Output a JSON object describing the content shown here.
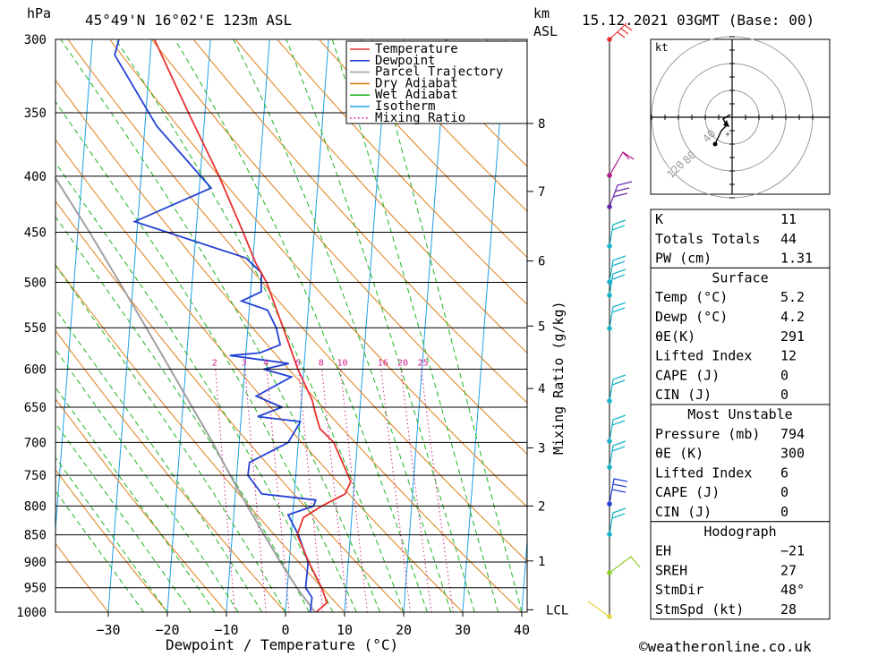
{
  "header": {
    "location": "45°49'N 16°02'E 123m ASL",
    "datetime": "15.12.2021 03GMT (Base: 00)",
    "pressure_unit": "hPa",
    "height_unit": "km",
    "height_unit2": "ASL"
  },
  "colors": {
    "temperature": "#e8312f",
    "dewpoint": "#2342d6",
    "parcel": "#a0a0a0",
    "dry_adiabat": "#e07d18",
    "wet_adiabat": "#1eb41e",
    "isotherm": "#1ea0e6",
    "mixing_ratio": "#d0208c"
  },
  "legend": [
    {
      "label": "Temperature",
      "key": "temperature",
      "style": "solid"
    },
    {
      "label": "Dewpoint",
      "key": "dewpoint",
      "style": "solid"
    },
    {
      "label": "Parcel Trajectory",
      "key": "parcel",
      "style": "solid"
    },
    {
      "label": "Dry Adiabat",
      "key": "dry_adiabat",
      "style": "solid"
    },
    {
      "label": "Wet Adiabat",
      "key": "wet_adiabat",
      "style": "solid"
    },
    {
      "label": "Isotherm",
      "key": "isotherm",
      "style": "solid"
    },
    {
      "label": "Mixing Ratio",
      "key": "mixing_ratio",
      "style": "dotted"
    }
  ],
  "chart_data": {
    "type": "line",
    "xlabel": "Dewpoint / Temperature (°C)",
    "ylabel_right": "Mixing Ratio (g/kg)",
    "xlim": [
      -40,
      40
    ],
    "ylim": [
      1000,
      300
    ],
    "y_scale": "log",
    "grid": true,
    "x_ticks": [
      "−30",
      "−20",
      "−10",
      "0",
      "10",
      "20",
      "30",
      "40"
    ],
    "pressure_levels": [
      300,
      350,
      400,
      450,
      500,
      550,
      600,
      650,
      700,
      750,
      800,
      850,
      900,
      950,
      1000
    ],
    "height_ticks": [
      {
        "label": "8",
        "p": 358
      },
      {
        "label": "7",
        "p": 413
      },
      {
        "label": "6",
        "p": 478
      },
      {
        "label": "5",
        "p": 548
      },
      {
        "label": "4",
        "p": 625
      },
      {
        "label": "3",
        "p": 708
      },
      {
        "label": "2",
        "p": 800
      },
      {
        "label": "1",
        "p": 898
      },
      {
        "label": "LCL",
        "p": 995
      }
    ],
    "mixing_ratio_labels": [
      "2",
      "3",
      "4",
      "6",
      "8",
      "10",
      "16",
      "20",
      "25"
    ],
    "series": [
      {
        "name": "Temperature",
        "key": "temperature",
        "points": [
          [
            1000,
            5.2
          ],
          [
            980,
            6.9
          ],
          [
            950,
            5.8
          ],
          [
            900,
            3.3
          ],
          [
            850,
            1.0
          ],
          [
            820,
            1.8
          ],
          [
            800,
            4.8
          ],
          [
            780,
            8.6
          ],
          [
            760,
            9.4
          ],
          [
            740,
            8.3
          ],
          [
            700,
            6.0
          ],
          [
            680,
            3.5
          ],
          [
            660,
            2.6
          ],
          [
            640,
            1.8
          ],
          [
            600,
            -1.0
          ],
          [
            560,
            -3.4
          ],
          [
            500,
            -7.4
          ],
          [
            480,
            -9.5
          ],
          [
            450,
            -12.0
          ],
          [
            400,
            -16.8
          ],
          [
            350,
            -22.8
          ],
          [
            300,
            -29.5
          ]
        ]
      },
      {
        "name": "Dewpoint",
        "key": "dewpoint",
        "points": [
          [
            1000,
            4.2
          ],
          [
            970,
            4.3
          ],
          [
            950,
            3.1
          ],
          [
            900,
            3.2
          ],
          [
            850,
            1.2
          ],
          [
            815,
            -0.8
          ],
          [
            800,
            3.4
          ],
          [
            790,
            3.7
          ],
          [
            780,
            -5.5
          ],
          [
            750,
            -8.1
          ],
          [
            730,
            -8.0
          ],
          [
            700,
            -1.7
          ],
          [
            670,
            0.1
          ],
          [
            663,
            -7.2
          ],
          [
            650,
            -3.2
          ],
          [
            635,
            -7.7
          ],
          [
            610,
            -2.0
          ],
          [
            600,
            -6.8
          ],
          [
            593,
            -2.6
          ],
          [
            583,
            -12.7
          ],
          [
            580,
            -7.7
          ],
          [
            570,
            -4.3
          ],
          [
            550,
            -5.2
          ],
          [
            530,
            -6.9
          ],
          [
            520,
            -11.4
          ],
          [
            510,
            -8.2
          ],
          [
            490,
            -8.4
          ],
          [
            475,
            -11.2
          ],
          [
            440,
            -30.5
          ],
          [
            410,
            -18.0
          ],
          [
            360,
            -28.0
          ],
          [
            310,
            -36.0
          ],
          [
            300,
            -35.5
          ]
        ]
      },
      {
        "name": "Parcel Trajectory",
        "key": "parcel",
        "points": [
          [
            1000,
            5.0
          ],
          [
            950,
            1.6
          ],
          [
            900,
            -1.5
          ],
          [
            850,
            -4.6
          ],
          [
            800,
            -7.8
          ],
          [
            750,
            -11.1
          ],
          [
            700,
            -14.5
          ],
          [
            650,
            -18.4
          ],
          [
            600,
            -22.6
          ],
          [
            550,
            -27.2
          ],
          [
            500,
            -32.3
          ],
          [
            450,
            -38.0
          ],
          [
            400,
            -44.7
          ],
          [
            350,
            -52.0
          ],
          [
            320,
            -56.5
          ]
        ]
      }
    ]
  },
  "hodograph": {
    "unit": "kt",
    "ring_labels": [
      "120",
      "80",
      "40"
    ]
  },
  "indices": {
    "main": [
      {
        "label": "K",
        "value": "11"
      },
      {
        "label": "Totals Totals",
        "value": "44"
      },
      {
        "label": "PW (cm)",
        "value": "1.31"
      }
    ],
    "surface_title": "Surface",
    "surface": [
      {
        "label": "Temp (°C)",
        "value": "5.2"
      },
      {
        "label": "Dewp (°C)",
        "value": "4.2"
      },
      {
        "label": "θE(K)",
        "value": "291"
      },
      {
        "label": "Lifted Index",
        "value": "12"
      },
      {
        "label": "CAPE (J)",
        "value": "0"
      },
      {
        "label": "CIN (J)",
        "value": "0"
      }
    ],
    "mu_title": "Most Unstable",
    "mu": [
      {
        "label": "Pressure (mb)",
        "value": "794"
      },
      {
        "label": "θE (K)",
        "value": "300"
      },
      {
        "label": "Lifted Index",
        "value": "6"
      },
      {
        "label": "CAPE (J)",
        "value": "0"
      },
      {
        "label": "CIN (J)",
        "value": "0"
      }
    ],
    "hodo_title": "Hodograph",
    "hodo": [
      {
        "label": "EH",
        "value": "−21"
      },
      {
        "label": "SREH",
        "value": "27"
      },
      {
        "label": "StmDir",
        "value": "48°"
      },
      {
        "label": "StmSpd (kt)",
        "value": "28"
      }
    ]
  },
  "footer": {
    "copyright": "©weatheronline.co.uk"
  }
}
